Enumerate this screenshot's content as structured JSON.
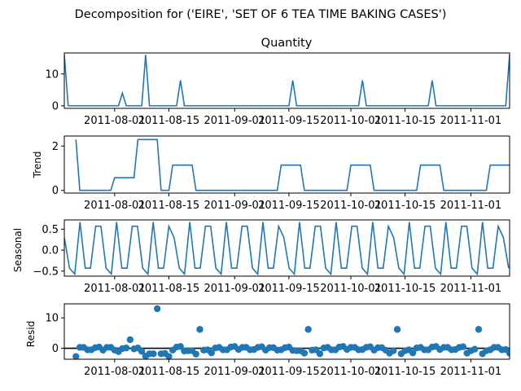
{
  "figure": {
    "suptitle": "Decomposition for ('EIRE', 'SET OF 6 TEA TIME BAKING CASES')"
  },
  "chart_data": [
    {
      "type": "line",
      "title": "Quantity",
      "ylabel": "",
      "color": "#1f77b4",
      "x_tick_labels": [
        "2011-08-01",
        "2011-08-15",
        "2011-09-01",
        "2011-09-15",
        "2011-10-01",
        "2011-10-15",
        "2011-11-01"
      ],
      "x_tick_dates": [
        "2011-08-01",
        "2011-08-15",
        "2011-09-01",
        "2011-09-15",
        "2011-10-01",
        "2011-10-15",
        "2011-11-01"
      ],
      "xlim": [
        "2011-07-19",
        "2011-11-11"
      ],
      "ylim": [
        -0.8,
        16.6
      ],
      "y_ticks": [
        0,
        10
      ],
      "points": [
        {
          "date": "2011-07-19",
          "value": 16
        },
        {
          "date": "2011-07-20",
          "value": 0
        },
        {
          "date": "2011-08-02",
          "value": 0
        },
        {
          "date": "2011-08-03",
          "value": 4
        },
        {
          "date": "2011-08-04",
          "value": 0
        },
        {
          "date": "2011-08-08",
          "value": 0
        },
        {
          "date": "2011-08-09",
          "value": 16
        },
        {
          "date": "2011-08-10",
          "value": 0
        },
        {
          "date": "2011-08-17",
          "value": 0
        },
        {
          "date": "2011-08-18",
          "value": 8
        },
        {
          "date": "2011-08-19",
          "value": 0
        },
        {
          "date": "2011-09-15",
          "value": 0
        },
        {
          "date": "2011-09-16",
          "value": 8
        },
        {
          "date": "2011-09-17",
          "value": 0
        },
        {
          "date": "2011-10-03",
          "value": 0
        },
        {
          "date": "2011-10-04",
          "value": 8
        },
        {
          "date": "2011-10-05",
          "value": 0
        },
        {
          "date": "2011-10-21",
          "value": 0
        },
        {
          "date": "2011-10-22",
          "value": 8
        },
        {
          "date": "2011-10-23",
          "value": 0
        },
        {
          "date": "2011-11-10",
          "value": 0
        },
        {
          "date": "2011-11-11",
          "value": 16
        }
      ]
    },
    {
      "type": "line",
      "title": "",
      "ylabel": "Trend",
      "color": "#1f77b4",
      "x_tick_labels": [
        "2011-08-01",
        "2011-08-15",
        "2011-09-01",
        "2011-09-15",
        "2011-10-01",
        "2011-10-15",
        "2011-11-01"
      ],
      "x_tick_dates": [
        "2011-08-01",
        "2011-08-15",
        "2011-09-01",
        "2011-09-15",
        "2011-10-01",
        "2011-10-15",
        "2011-11-01"
      ],
      "xlim": [
        "2011-07-19",
        "2011-11-11"
      ],
      "ylim": [
        -0.12,
        2.45
      ],
      "y_ticks": [
        0,
        2
      ],
      "points": [
        {
          "date": "2011-07-22",
          "value": 2.29
        },
        {
          "date": "2011-07-23",
          "value": 0
        },
        {
          "date": "2011-07-31",
          "value": 0
        },
        {
          "date": "2011-08-01",
          "value": 0.57
        },
        {
          "date": "2011-08-06",
          "value": 0.57
        },
        {
          "date": "2011-08-07",
          "value": 2.29
        },
        {
          "date": "2011-08-12",
          "value": 2.29
        },
        {
          "date": "2011-08-13",
          "value": 0
        },
        {
          "date": "2011-08-15",
          "value": 0
        },
        {
          "date": "2011-08-16",
          "value": 1.14
        },
        {
          "date": "2011-08-21",
          "value": 1.14
        },
        {
          "date": "2011-08-22",
          "value": 0
        },
        {
          "date": "2011-09-12",
          "value": 0
        },
        {
          "date": "2011-09-13",
          "value": 1.14
        },
        {
          "date": "2011-09-18",
          "value": 1.14
        },
        {
          "date": "2011-09-19",
          "value": 0
        },
        {
          "date": "2011-09-30",
          "value": 0
        },
        {
          "date": "2011-10-01",
          "value": 1.14
        },
        {
          "date": "2011-10-06",
          "value": 1.14
        },
        {
          "date": "2011-10-07",
          "value": 0
        },
        {
          "date": "2011-10-18",
          "value": 0
        },
        {
          "date": "2011-10-19",
          "value": 1.14
        },
        {
          "date": "2011-10-24",
          "value": 1.14
        },
        {
          "date": "2011-10-25",
          "value": 0
        },
        {
          "date": "2011-11-05",
          "value": 0
        },
        {
          "date": "2011-11-06",
          "value": 1.14
        },
        {
          "date": "2011-11-11",
          "value": 1.14
        },
        {
          "date": "2011-11-12",
          "value": 0
        },
        {
          "date": "2011-11-18",
          "value": 0
        },
        {
          "date": "2011-11-19",
          "value": 2.29
        }
      ]
    },
    {
      "type": "line",
      "title": "",
      "ylabel": "Seasonal",
      "color": "#1f77b4",
      "x_tick_labels": [
        "2011-08-01",
        "2011-08-15",
        "2011-09-01",
        "2011-09-15",
        "2011-10-01",
        "2011-10-15",
        "2011-11-01"
      ],
      "x_tick_dates": [
        "2011-08-01",
        "2011-08-15",
        "2011-09-01",
        "2011-09-15",
        "2011-10-01",
        "2011-10-15",
        "2011-11-01"
      ],
      "xlim": [
        "2011-07-19",
        "2011-11-11"
      ],
      "ylim": [
        -0.62,
        0.72
      ],
      "y_ticks": [
        0.5,
        0.0,
        -0.5
      ],
      "y_tick_labels": [
        "0.5",
        "0.0",
        "−0.5"
      ],
      "period_pattern": [
        0.3,
        -0.43,
        -0.57,
        0.67,
        -0.43,
        -0.43,
        0.57,
        0.57,
        -0.43,
        -0.57,
        0.67,
        -0.43,
        -0.43,
        0.57,
        0.57,
        -0.43,
        -0.57,
        0.67,
        -0.43,
        -0.43,
        0.57
      ],
      "start_date": "2011-07-19",
      "num_points": 86
    },
    {
      "type": "scatter",
      "title": "",
      "ylabel": "Resid",
      "color": "#1f77b4",
      "hline": 0,
      "x_tick_labels": [
        "2011-08-01",
        "2011-08-15",
        "2011-09-01",
        "2011-09-15",
        "2011-10-01",
        "2011-10-15",
        "2011-11-01"
      ],
      "x_tick_dates": [
        "2011-08-01",
        "2011-08-15",
        "2011-09-01",
        "2011-09-15",
        "2011-10-01",
        "2011-10-15",
        "2011-11-01"
      ],
      "xlim": [
        "2011-07-19",
        "2011-11-11"
      ],
      "ylim": [
        -3.6,
        14.6
      ],
      "y_ticks": [
        0,
        10
      ],
      "points": [
        {
          "date": "2011-07-22",
          "value": -2.7
        },
        {
          "date": "2011-07-23",
          "value": 0.3
        },
        {
          "date": "2011-07-24",
          "value": 0.3
        },
        {
          "date": "2011-07-25",
          "value": -0.5
        },
        {
          "date": "2011-07-26",
          "value": -0.5
        },
        {
          "date": "2011-07-27",
          "value": 0.2
        },
        {
          "date": "2011-07-28",
          "value": 0.4
        },
        {
          "date": "2011-07-29",
          "value": -0.6
        },
        {
          "date": "2011-07-30",
          "value": 0.3
        },
        {
          "date": "2011-07-31",
          "value": 0.3
        },
        {
          "date": "2011-08-01",
          "value": -0.6
        },
        {
          "date": "2011-08-02",
          "value": -1.1
        },
        {
          "date": "2011-08-03",
          "value": -0.1
        },
        {
          "date": "2011-08-04",
          "value": 0.1
        },
        {
          "date": "2011-08-05",
          "value": 2.8
        },
        {
          "date": "2011-08-06",
          "value": -0.2
        },
        {
          "date": "2011-08-07",
          "value": 0.1
        },
        {
          "date": "2011-08-08",
          "value": -1.0
        },
        {
          "date": "2011-08-09",
          "value": -2.6
        },
        {
          "date": "2011-08-10",
          "value": -1.8
        },
        {
          "date": "2011-08-11",
          "value": -1.8
        },
        {
          "date": "2011-08-12",
          "value": 13.0
        },
        {
          "date": "2011-08-13",
          "value": -1.8
        },
        {
          "date": "2011-08-14",
          "value": -1.7
        },
        {
          "date": "2011-08-15",
          "value": -2.7
        },
        {
          "date": "2011-08-16",
          "value": -0.6
        },
        {
          "date": "2011-08-17",
          "value": 0.4
        },
        {
          "date": "2011-08-18",
          "value": 0.6
        },
        {
          "date": "2011-08-19",
          "value": -0.9
        },
        {
          "date": "2011-08-20",
          "value": -0.8
        },
        {
          "date": "2011-08-21",
          "value": -0.8
        },
        {
          "date": "2011-08-22",
          "value": -1.9
        },
        {
          "date": "2011-08-23",
          "value": 6.2
        },
        {
          "date": "2011-08-24",
          "value": -0.6
        },
        {
          "date": "2011-08-25",
          "value": -0.5
        },
        {
          "date": "2011-08-26",
          "value": -1.5
        },
        {
          "date": "2011-08-27",
          "value": 0.1
        },
        {
          "date": "2011-08-28",
          "value": 0.3
        },
        {
          "date": "2011-08-29",
          "value": -0.5
        },
        {
          "date": "2011-08-30",
          "value": -0.5
        },
        {
          "date": "2011-08-31",
          "value": 0.4
        },
        {
          "date": "2011-09-01",
          "value": 0.6
        },
        {
          "date": "2011-09-02",
          "value": -0.4
        },
        {
          "date": "2011-09-03",
          "value": 0.3
        },
        {
          "date": "2011-09-04",
          "value": 0.3
        },
        {
          "date": "2011-09-05",
          "value": -0.5
        },
        {
          "date": "2011-09-06",
          "value": -0.4
        },
        {
          "date": "2011-09-07",
          "value": 0.3
        },
        {
          "date": "2011-09-08",
          "value": 0.5
        },
        {
          "date": "2011-09-09",
          "value": -0.6
        },
        {
          "date": "2011-09-10",
          "value": 0.2
        },
        {
          "date": "2011-09-11",
          "value": 0.2
        },
        {
          "date": "2011-09-12",
          "value": -0.6
        },
        {
          "date": "2011-09-13",
          "value": -0.5
        },
        {
          "date": "2011-09-14",
          "value": 0.2
        },
        {
          "date": "2011-09-15",
          "value": 0.4
        },
        {
          "date": "2011-09-16",
          "value": -0.7
        },
        {
          "date": "2011-09-17",
          "value": -0.8
        },
        {
          "date": "2011-09-18",
          "value": -0.8
        },
        {
          "date": "2011-09-19",
          "value": -1.6
        },
        {
          "date": "2011-09-20",
          "value": 6.2
        },
        {
          "date": "2011-09-21",
          "value": -0.6
        },
        {
          "date": "2011-09-22",
          "value": -0.5
        },
        {
          "date": "2011-09-23",
          "value": -1.8
        },
        {
          "date": "2011-09-24",
          "value": 0.1
        },
        {
          "date": "2011-09-25",
          "value": 0.3
        },
        {
          "date": "2011-09-26",
          "value": -0.5
        },
        {
          "date": "2011-09-27",
          "value": -0.5
        },
        {
          "date": "2011-09-28",
          "value": 0.4
        },
        {
          "date": "2011-09-29",
          "value": 0.6
        },
        {
          "date": "2011-09-30",
          "value": -0.4
        },
        {
          "date": "2011-10-01",
          "value": 0.3
        },
        {
          "date": "2011-10-02",
          "value": 0.3
        },
        {
          "date": "2011-10-03",
          "value": -0.5
        },
        {
          "date": "2011-10-04",
          "value": -0.4
        },
        {
          "date": "2011-10-05",
          "value": 0.3
        },
        {
          "date": "2011-10-06",
          "value": 0.5
        },
        {
          "date": "2011-10-07",
          "value": -0.6
        },
        {
          "date": "2011-10-08",
          "value": 0.2
        },
        {
          "date": "2011-10-09",
          "value": 0.2
        },
        {
          "date": "2011-10-10",
          "value": -0.6
        },
        {
          "date": "2011-10-11",
          "value": -1.6
        },
        {
          "date": "2011-10-12",
          "value": -0.8
        },
        {
          "date": "2011-10-13",
          "value": 6.2
        },
        {
          "date": "2011-10-14",
          "value": -1.8
        },
        {
          "date": "2011-10-15",
          "value": -0.8
        }
      ],
      "points_late": [
        {
          "date": "2011-10-16",
          "value": -0.5
        },
        {
          "date": "2011-10-17",
          "value": -1.5
        },
        {
          "date": "2011-10-18",
          "value": 0.1
        },
        {
          "date": "2011-10-19",
          "value": 0.3
        },
        {
          "date": "2011-10-20",
          "value": -0.5
        },
        {
          "date": "2011-10-21",
          "value": -0.5
        },
        {
          "date": "2011-10-22",
          "value": 0.4
        },
        {
          "date": "2011-10-23",
          "value": 0.6
        },
        {
          "date": "2011-10-24",
          "value": -0.4
        },
        {
          "date": "2011-10-25",
          "value": 0.3
        },
        {
          "date": "2011-10-26",
          "value": 0.3
        },
        {
          "date": "2011-10-27",
          "value": -0.5
        },
        {
          "date": "2011-10-28",
          "value": -0.4
        },
        {
          "date": "2011-10-29",
          "value": 0.3
        },
        {
          "date": "2011-10-30",
          "value": 0.5
        },
        {
          "date": "2011-10-31",
          "value": -1.6
        },
        {
          "date": "2011-11-01",
          "value": -0.8
        },
        {
          "date": "2011-11-02",
          "value": -0.3
        },
        {
          "date": "2011-11-03",
          "value": 6.2
        },
        {
          "date": "2011-11-04",
          "value": -1.8
        },
        {
          "date": "2011-11-05",
          "value": -0.8
        },
        {
          "date": "2011-11-06",
          "value": -0.5
        },
        {
          "date": "2011-11-07",
          "value": 0.3
        },
        {
          "date": "2011-11-08",
          "value": 0.3
        },
        {
          "date": "2011-11-09",
          "value": -0.5
        },
        {
          "date": "2011-11-10",
          "value": -0.4
        },
        {
          "date": "2011-11-11",
          "value": -1.6
        }
      ]
    }
  ]
}
